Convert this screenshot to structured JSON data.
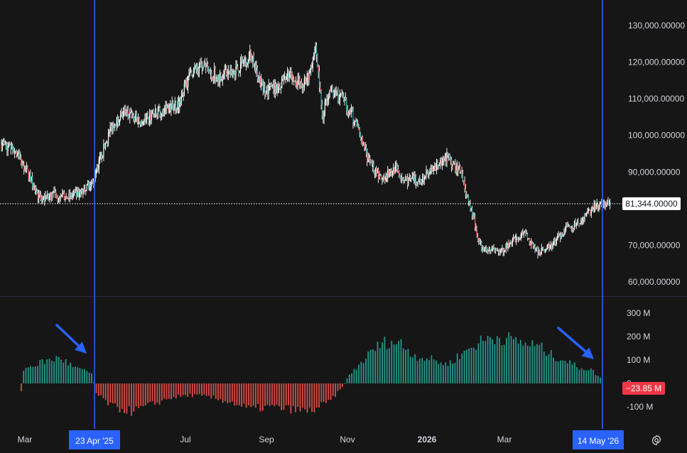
{
  "chart_data": {
    "type": "candlestick_with_histogram",
    "price_axis": {
      "ticks": [
        "130,000.00000",
        "120,000.00000",
        "110,000.00000",
        "100,000.00000",
        "90,000.00000",
        "80,000.00000",
        "70,000.00000",
        "60,000.00000"
      ],
      "range": [
        56000,
        136000
      ]
    },
    "current_price": {
      "value": 81344,
      "label": "81,344.00000"
    },
    "histogram_axis": {
      "ticks": [
        "300 M",
        "200 M",
        "100 M",
        "0",
        "-100 M"
      ],
      "range": [
        -175,
        350
      ]
    },
    "current_histogram": {
      "value": -23.85,
      "label": "−23.85 M"
    },
    "time_axis": {
      "labels": [
        "Mar",
        "Jul",
        "Sep",
        "Nov",
        "2026",
        "Mar"
      ],
      "marker_labels": [
        "23 Apr '25",
        "14 May '26"
      ]
    },
    "price_path": [
      {
        "week": 0,
        "price": 97500
      },
      {
        "week": 2,
        "price": 96000
      },
      {
        "week": 4,
        "price": 90000
      },
      {
        "week": 6,
        "price": 82000
      },
      {
        "week": 8,
        "price": 84000
      },
      {
        "week": 10,
        "price": 83000
      },
      {
        "week": 12,
        "price": 84000
      },
      {
        "week": 14,
        "price": 87000
      },
      {
        "week": 15,
        "price": 93500
      },
      {
        "week": 17,
        "price": 103000
      },
      {
        "week": 19,
        "price": 106000
      },
      {
        "week": 21,
        "price": 104000
      },
      {
        "week": 23,
        "price": 105000
      },
      {
        "week": 25,
        "price": 107500
      },
      {
        "week": 27,
        "price": 108500
      },
      {
        "week": 29,
        "price": 117500
      },
      {
        "week": 31,
        "price": 118500
      },
      {
        "week": 33,
        "price": 116000
      },
      {
        "week": 36,
        "price": 118000
      },
      {
        "week": 38,
        "price": 122000
      },
      {
        "week": 40,
        "price": 112500
      },
      {
        "week": 42,
        "price": 113000
      },
      {
        "week": 44,
        "price": 116000
      },
      {
        "week": 46,
        "price": 113000
      },
      {
        "week": 47,
        "price": 117000
      },
      {
        "week": 48,
        "price": 124000
      },
      {
        "week": 49,
        "price": 105000
      },
      {
        "week": 50,
        "price": 112000
      },
      {
        "week": 52,
        "price": 110000
      },
      {
        "week": 54,
        "price": 104000
      },
      {
        "week": 56,
        "price": 93000
      },
      {
        "week": 58,
        "price": 88000
      },
      {
        "week": 60,
        "price": 91000
      },
      {
        "week": 62,
        "price": 87500
      },
      {
        "week": 64,
        "price": 88000
      },
      {
        "week": 66,
        "price": 91000
      },
      {
        "week": 68,
        "price": 94000
      },
      {
        "week": 70,
        "price": 90000
      },
      {
        "week": 72,
        "price": 78000
      },
      {
        "week": 73,
        "price": 70000
      },
      {
        "week": 74,
        "price": 69000
      },
      {
        "week": 76,
        "price": 68000
      },
      {
        "week": 78,
        "price": 71000
      },
      {
        "week": 80,
        "price": 73000
      },
      {
        "week": 82,
        "price": 68000
      },
      {
        "week": 84,
        "price": 70000
      },
      {
        "week": 86,
        "price": 74000
      },
      {
        "week": 88,
        "price": 76000
      },
      {
        "week": 90,
        "price": 79500
      },
      {
        "week": 92,
        "price": 82000
      },
      {
        "week": 93,
        "price": 81344
      }
    ],
    "histogram_path": [
      {
        "week": 0,
        "value": -50
      },
      {
        "week": 3,
        "value": -40
      },
      {
        "week": 3.4,
        "value": 60
      },
      {
        "week": 6,
        "value": 90
      },
      {
        "week": 9,
        "value": 110
      },
      {
        "week": 11,
        "value": 70
      },
      {
        "week": 14,
        "value": 40
      },
      {
        "week": 14.3,
        "value": -40
      },
      {
        "week": 17,
        "value": -100
      },
      {
        "week": 20,
        "value": -120
      },
      {
        "week": 23,
        "value": -90
      },
      {
        "week": 26,
        "value": -60
      },
      {
        "week": 29,
        "value": -50
      },
      {
        "week": 32,
        "value": -60
      },
      {
        "week": 35,
        "value": -80
      },
      {
        "week": 38,
        "value": -110
      },
      {
        "week": 41,
        "value": -100
      },
      {
        "week": 44,
        "value": -110
      },
      {
        "week": 47,
        "value": -120
      },
      {
        "week": 50,
        "value": -80
      },
      {
        "week": 52,
        "value": -20
      },
      {
        "week": 53,
        "value": 30
      },
      {
        "week": 55,
        "value": 90
      },
      {
        "week": 57,
        "value": 150
      },
      {
        "week": 59,
        "value": 180
      },
      {
        "week": 61,
        "value": 170
      },
      {
        "week": 63,
        "value": 120
      },
      {
        "week": 66,
        "value": 100
      },
      {
        "week": 68,
        "value": 80
      },
      {
        "week": 70,
        "value": 120
      },
      {
        "week": 72,
        "value": 160
      },
      {
        "week": 74,
        "value": 190
      },
      {
        "week": 76,
        "value": 200
      },
      {
        "week": 78,
        "value": 185
      },
      {
        "week": 80,
        "value": 170
      },
      {
        "week": 82,
        "value": 160
      },
      {
        "week": 84,
        "value": 120
      },
      {
        "week": 86,
        "value": 100
      },
      {
        "week": 88,
        "value": 70
      },
      {
        "week": 90,
        "value": 60
      },
      {
        "week": 92,
        "value": 10
      },
      {
        "week": 93,
        "value": -23.85
      }
    ],
    "colors": {
      "background": "#161616",
      "up": "#26a69a",
      "down": "#ef5350",
      "wick": "#ffffff",
      "marker": "#2962ff",
      "axis_text": "#d1d4dc",
      "price_label_bg": "#ffffff",
      "histogram_label_bg": "#f23645"
    },
    "annotations": [
      {
        "type": "arrow",
        "color": "#2962ff",
        "points_to": "23 Apr '25 marker"
      },
      {
        "type": "arrow",
        "color": "#2962ff",
        "points_to": "14 May '26 marker"
      }
    ],
    "settings_icon": "gear-icon"
  }
}
